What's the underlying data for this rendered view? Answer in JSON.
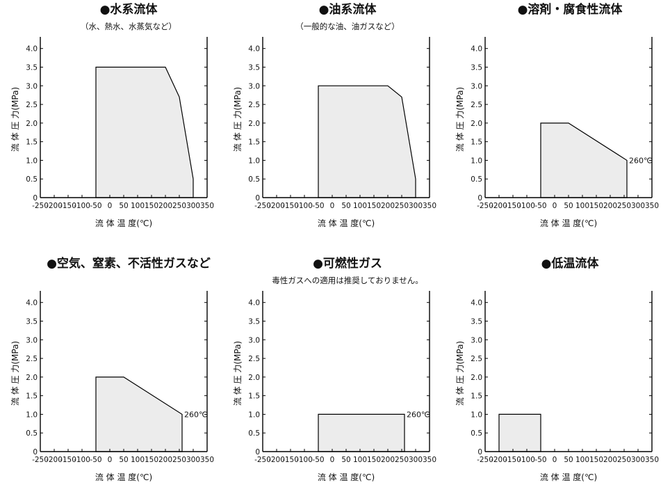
{
  "chart_data": [
    {
      "type": "area",
      "title": "●水系流体",
      "subtitle": "（水、熱水、水蒸気など）",
      "xlabel": "流 体 温 度(℃)",
      "ylabel": "流 体 圧 力(MPa)",
      "xlim": [
        -250,
        350
      ],
      "ylim": [
        0,
        4.2
      ],
      "x_ticks": [
        -250,
        -200,
        -150,
        -100,
        -50,
        0,
        50,
        100,
        150,
        200,
        250,
        300,
        350
      ],
      "y_ticks": [
        0,
        0.5,
        1.0,
        1.5,
        2.0,
        2.5,
        3.0,
        3.5,
        4.0
      ],
      "y_tick_labels": [
        "0",
        "0.5",
        "1.0",
        "1.5",
        "2.0",
        "2.5",
        "3.0",
        "3.5",
        "4.0"
      ],
      "series": [
        {
          "x": [
            -50,
            -50,
            200,
            250,
            300,
            300
          ],
          "y": [
            0,
            3.5,
            3.5,
            2.7,
            0.5,
            0
          ]
        }
      ],
      "annotation": "",
      "fill_color": "#ececec",
      "line_color": "#000000"
    },
    {
      "type": "area",
      "title": "●油系流体",
      "subtitle": "（一般的な油、油ガスなど）",
      "xlabel": "流 体 温 度(℃)",
      "ylabel": "流 体 圧 力(MPa)",
      "xlim": [
        -250,
        350
      ],
      "ylim": [
        0,
        4.2
      ],
      "x_ticks": [
        -250,
        -200,
        -150,
        -100,
        -50,
        0,
        50,
        100,
        150,
        200,
        250,
        300,
        350
      ],
      "y_ticks": [
        0,
        0.5,
        1.0,
        1.5,
        2.0,
        2.5,
        3.0,
        3.5,
        4.0
      ],
      "y_tick_labels": [
        "0",
        "0.5",
        "1.0",
        "1.5",
        "2.0",
        "2.5",
        "3.0",
        "3.5",
        "4.0"
      ],
      "series": [
        {
          "x": [
            -50,
            -50,
            200,
            250,
            300,
            300
          ],
          "y": [
            0,
            3.0,
            3.0,
            2.7,
            0.5,
            0
          ]
        }
      ],
      "annotation": "",
      "fill_color": "#ececec",
      "line_color": "#000000"
    },
    {
      "type": "area",
      "title": "●溶剤・腐食性流体",
      "subtitle": "",
      "xlabel": "流 体 温 度(℃)",
      "ylabel": "流 体 圧 力(MPa)",
      "xlim": [
        -250,
        350
      ],
      "ylim": [
        0,
        4.2
      ],
      "x_ticks": [
        -250,
        -200,
        -150,
        -100,
        -50,
        0,
        50,
        100,
        150,
        200,
        250,
        300,
        350
      ],
      "y_ticks": [
        0,
        0.5,
        1.0,
        1.5,
        2.0,
        2.5,
        3.0,
        3.5,
        4.0
      ],
      "y_tick_labels": [
        "0",
        "0.5",
        "1.0",
        "1.5",
        "2.0",
        "2.5",
        "3.0",
        "3.5",
        "4.0"
      ],
      "series": [
        {
          "x": [
            -50,
            -50,
            50,
            260,
            260
          ],
          "y": [
            0,
            2.0,
            2.0,
            1.0,
            0
          ]
        }
      ],
      "annotation": "260℃",
      "fill_color": "#ececec",
      "line_color": "#000000"
    },
    {
      "type": "area",
      "title": "●空気、窒素、不活性ガスなど",
      "subtitle": "",
      "xlabel": "流 体 温 度(℃)",
      "ylabel": "流 体 圧 力(MPa)",
      "xlim": [
        -250,
        350
      ],
      "ylim": [
        0,
        4.2
      ],
      "x_ticks": [
        -250,
        -200,
        -150,
        -100,
        -50,
        0,
        50,
        100,
        150,
        200,
        250,
        300,
        350
      ],
      "y_ticks": [
        0,
        0.5,
        1.0,
        1.5,
        2.0,
        2.5,
        3.0,
        3.5,
        4.0
      ],
      "y_tick_labels": [
        "0",
        "0.5",
        "1.0",
        "1.5",
        "2.0",
        "2.5",
        "3.0",
        "3.5",
        "4.0"
      ],
      "series": [
        {
          "x": [
            -50,
            -50,
            50,
            260,
            260
          ],
          "y": [
            0,
            2.0,
            2.0,
            1.0,
            0
          ]
        }
      ],
      "annotation": "260℃",
      "fill_color": "#ececec",
      "line_color": "#000000"
    },
    {
      "type": "area",
      "title": "●可燃性ガス",
      "subtitle": "毒性ガスへの適用は推奨しておりません。",
      "xlabel": "流 体 温 度(℃)",
      "ylabel": "流 体 圧 力(MPa)",
      "xlim": [
        -250,
        350
      ],
      "ylim": [
        0,
        4.2
      ],
      "x_ticks": [
        -250,
        -200,
        -150,
        -100,
        -50,
        0,
        50,
        100,
        150,
        200,
        250,
        300,
        350
      ],
      "y_ticks": [
        0,
        0.5,
        1.0,
        1.5,
        2.0,
        2.5,
        3.0,
        3.5,
        4.0
      ],
      "y_tick_labels": [
        "0",
        "0.5",
        "1.0",
        "1.5",
        "2.0",
        "2.5",
        "3.0",
        "3.5",
        "4.0"
      ],
      "series": [
        {
          "x": [
            -50,
            -50,
            260,
            260
          ],
          "y": [
            0,
            1.0,
            1.0,
            0
          ]
        }
      ],
      "annotation": "260℃",
      "fill_color": "#ececec",
      "line_color": "#000000"
    },
    {
      "type": "area",
      "title": "●低温流体",
      "subtitle": "",
      "xlabel": "流 体 温 度(℃)",
      "ylabel": "流 体 圧 力(MPa)",
      "xlim": [
        -250,
        350
      ],
      "ylim": [
        0,
        4.2
      ],
      "x_ticks": [
        -250,
        -200,
        -150,
        -100,
        -50,
        0,
        50,
        100,
        150,
        200,
        250,
        300,
        350
      ],
      "y_ticks": [
        0,
        0.5,
        1.0,
        1.5,
        2.0,
        2.5,
        3.0,
        3.5,
        4.0
      ],
      "y_tick_labels": [
        "0",
        "0.5",
        "1.0",
        "1.5",
        "2.0",
        "2.5",
        "3.0",
        "3.5",
        "4.0"
      ],
      "series": [
        {
          "x": [
            -200,
            -200,
            -50,
            -50
          ],
          "y": [
            0,
            1.0,
            1.0,
            0
          ]
        }
      ],
      "annotation": "",
      "fill_color": "#ececec",
      "line_color": "#000000"
    }
  ]
}
